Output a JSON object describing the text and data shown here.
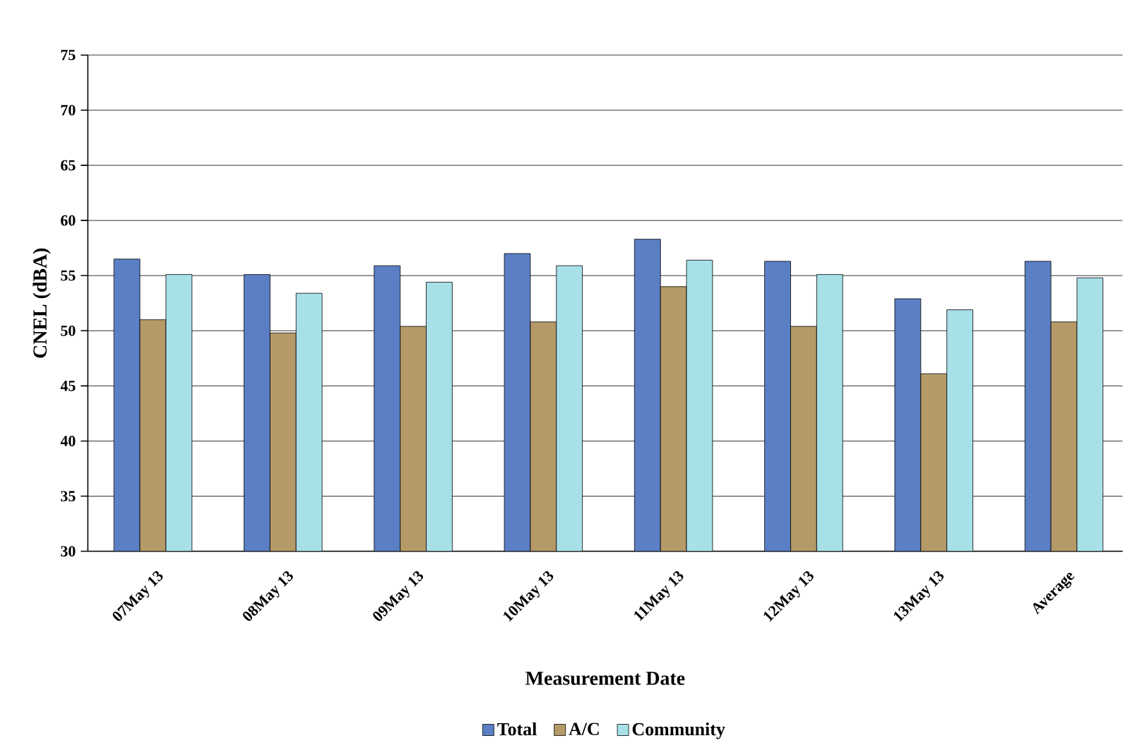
{
  "chart_data": {
    "type": "bar",
    "xlabel": "Measurement Date",
    "ylabel": "CNEL (dBA)",
    "categories": [
      "07May 13",
      "08May 13",
      "09May 13",
      "10May 13",
      "11May 13",
      "12May 13",
      "13May 13",
      "Average"
    ],
    "series": [
      {
        "name": "Total",
        "color": "#5b7fc4",
        "values": [
          56.5,
          55.1,
          55.9,
          57.0,
          58.3,
          56.3,
          52.9,
          56.3
        ]
      },
      {
        "name": "A/C",
        "color": "#b59a68",
        "values": [
          51.0,
          49.8,
          50.4,
          50.8,
          54.0,
          50.4,
          46.1,
          50.8
        ]
      },
      {
        "name": "Community",
        "color": "#a8e0e8",
        "values": [
          55.1,
          53.4,
          54.4,
          55.9,
          56.4,
          55.1,
          51.9,
          54.8
        ]
      }
    ],
    "ylim": [
      30,
      75
    ],
    "yticks": [
      30,
      35,
      40,
      45,
      50,
      55,
      60,
      65,
      70,
      75
    ],
    "grid": "y",
    "legend": "bottom"
  }
}
